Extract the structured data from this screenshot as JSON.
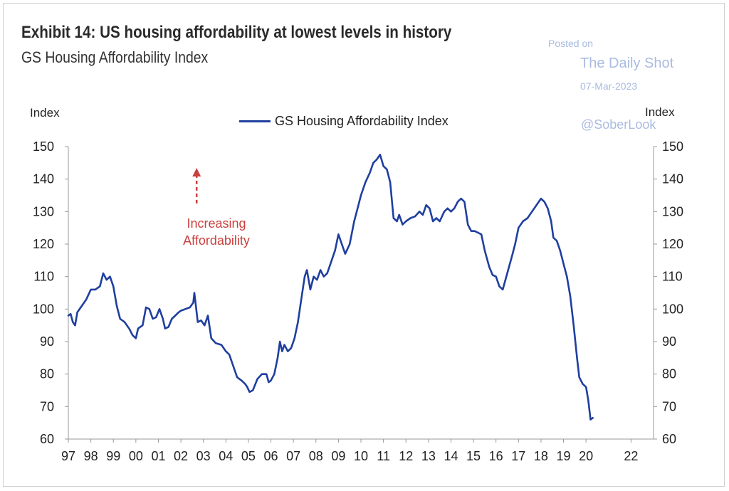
{
  "title": "Exhibit 14: US housing affordability at lowest levels in history",
  "subtitle": "GS Housing Affordability Index",
  "watermark": {
    "posted": "Posted on",
    "site": "The Daily Shot",
    "date": "07-Mar-2023",
    "handle": "@SoberLook"
  },
  "colors": {
    "line": "#1f3f9f",
    "annotation": "#c8413f",
    "watermark": "#a9bbe0"
  },
  "chart_data": {
    "type": "line",
    "title": "Exhibit 14: US housing affordability at lowest levels in history",
    "subtitle": "GS Housing Affordability Index",
    "ylabel_left": "Index",
    "ylabel_right": "Index",
    "ylim": [
      60,
      150
    ],
    "yticks": [
      60,
      70,
      80,
      90,
      100,
      110,
      120,
      130,
      140,
      150
    ],
    "xlim": [
      1997.0,
      2023.0
    ],
    "xticks": [
      {
        "x": 1997,
        "label": "97"
      },
      {
        "x": 1998,
        "label": "98"
      },
      {
        "x": 1999,
        "label": "99"
      },
      {
        "x": 2000,
        "label": "00"
      },
      {
        "x": 2001,
        "label": "01"
      },
      {
        "x": 2002,
        "label": "02"
      },
      {
        "x": 2003,
        "label": "03"
      },
      {
        "x": 2004,
        "label": "04"
      },
      {
        "x": 2005,
        "label": "05"
      },
      {
        "x": 2006,
        "label": "06"
      },
      {
        "x": 2007,
        "label": "07"
      },
      {
        "x": 2008,
        "label": "08"
      },
      {
        "x": 2009,
        "label": "09"
      },
      {
        "x": 2010,
        "label": "10"
      },
      {
        "x": 2011,
        "label": "11"
      },
      {
        "x": 2012,
        "label": "12"
      },
      {
        "x": 2013,
        "label": "13"
      },
      {
        "x": 2014,
        "label": "14"
      },
      {
        "x": 2015,
        "label": "15"
      },
      {
        "x": 2016,
        "label": "16"
      },
      {
        "x": 2017,
        "label": "17"
      },
      {
        "x": 2018,
        "label": "18"
      },
      {
        "x": 2019,
        "label": "19"
      },
      {
        "x": 2020,
        "label": "20"
      },
      {
        "x": 2022,
        "label": "22"
      }
    ],
    "legend": "top-center",
    "grid": false,
    "series": [
      {
        "name": "GS Housing Affordability Index",
        "points": [
          [
            1997.0,
            98
          ],
          [
            1997.1,
            98.5
          ],
          [
            1997.2,
            96
          ],
          [
            1997.3,
            95
          ],
          [
            1997.4,
            99
          ],
          [
            1997.6,
            101
          ],
          [
            1997.8,
            103
          ],
          [
            1998.0,
            106
          ],
          [
            1998.2,
            106
          ],
          [
            1998.4,
            107
          ],
          [
            1998.55,
            111
          ],
          [
            1998.7,
            109
          ],
          [
            1998.85,
            110
          ],
          [
            1999.0,
            107
          ],
          [
            1999.15,
            101
          ],
          [
            1999.3,
            97
          ],
          [
            1999.5,
            96
          ],
          [
            1999.7,
            94
          ],
          [
            1999.85,
            92
          ],
          [
            2000.0,
            91
          ],
          [
            2000.1,
            94
          ],
          [
            2000.3,
            95
          ],
          [
            2000.45,
            100.5
          ],
          [
            2000.6,
            100
          ],
          [
            2000.75,
            97
          ],
          [
            2000.9,
            97.5
          ],
          [
            2001.05,
            100
          ],
          [
            2001.2,
            97
          ],
          [
            2001.3,
            94
          ],
          [
            2001.45,
            94.5
          ],
          [
            2001.6,
            97
          ],
          [
            2001.75,
            98
          ],
          [
            2001.9,
            99
          ],
          [
            2002.0,
            99.5
          ],
          [
            2002.2,
            100
          ],
          [
            2002.4,
            100.5
          ],
          [
            2002.55,
            102
          ],
          [
            2002.6,
            105
          ],
          [
            2002.75,
            96
          ],
          [
            2002.9,
            96.5
          ],
          [
            2003.05,
            95
          ],
          [
            2003.2,
            98
          ],
          [
            2003.35,
            91
          ],
          [
            2003.55,
            89.5
          ],
          [
            2003.8,
            89
          ],
          [
            2004.0,
            87
          ],
          [
            2004.15,
            86
          ],
          [
            2004.3,
            83
          ],
          [
            2004.5,
            79
          ],
          [
            2004.7,
            78
          ],
          [
            2004.85,
            77
          ],
          [
            2004.95,
            76
          ],
          [
            2005.05,
            74.5
          ],
          [
            2005.2,
            75
          ],
          [
            2005.4,
            78.5
          ],
          [
            2005.6,
            80
          ],
          [
            2005.8,
            80
          ],
          [
            2005.9,
            77.5
          ],
          [
            2006.0,
            78
          ],
          [
            2006.15,
            80
          ],
          [
            2006.3,
            85
          ],
          [
            2006.4,
            90
          ],
          [
            2006.5,
            87
          ],
          [
            2006.6,
            89
          ],
          [
            2006.75,
            87
          ],
          [
            2006.9,
            88
          ],
          [
            2007.05,
            91
          ],
          [
            2007.2,
            96
          ],
          [
            2007.35,
            103
          ],
          [
            2007.5,
            110
          ],
          [
            2007.6,
            112
          ],
          [
            2007.75,
            106
          ],
          [
            2007.9,
            110
          ],
          [
            2008.05,
            109
          ],
          [
            2008.2,
            112
          ],
          [
            2008.35,
            110
          ],
          [
            2008.5,
            111
          ],
          [
            2008.7,
            115
          ],
          [
            2008.85,
            118
          ],
          [
            2009.0,
            123
          ],
          [
            2009.15,
            120
          ],
          [
            2009.3,
            117
          ],
          [
            2009.5,
            120
          ],
          [
            2009.7,
            127
          ],
          [
            2009.85,
            131
          ],
          [
            2010.0,
            135
          ],
          [
            2010.2,
            139
          ],
          [
            2010.4,
            142
          ],
          [
            2010.55,
            145
          ],
          [
            2010.7,
            146
          ],
          [
            2010.85,
            147.5
          ],
          [
            2011.0,
            144
          ],
          [
            2011.15,
            143
          ],
          [
            2011.3,
            139
          ],
          [
            2011.45,
            128
          ],
          [
            2011.6,
            127
          ],
          [
            2011.7,
            129
          ],
          [
            2011.85,
            126
          ],
          [
            2012.0,
            127
          ],
          [
            2012.2,
            128
          ],
          [
            2012.4,
            128.5
          ],
          [
            2012.6,
            130
          ],
          [
            2012.75,
            129
          ],
          [
            2012.9,
            132
          ],
          [
            2013.05,
            131
          ],
          [
            2013.2,
            127
          ],
          [
            2013.35,
            128
          ],
          [
            2013.5,
            127
          ],
          [
            2013.7,
            130
          ],
          [
            2013.85,
            131
          ],
          [
            2014.0,
            130
          ],
          [
            2014.15,
            131
          ],
          [
            2014.3,
            133
          ],
          [
            2014.45,
            134
          ],
          [
            2014.6,
            133
          ],
          [
            2014.75,
            126
          ],
          [
            2014.9,
            124
          ],
          [
            2015.05,
            124
          ],
          [
            2015.2,
            123.5
          ],
          [
            2015.35,
            123
          ],
          [
            2015.5,
            118
          ],
          [
            2015.7,
            113
          ],
          [
            2015.85,
            110.5
          ],
          [
            2016.0,
            110
          ],
          [
            2016.15,
            107
          ],
          [
            2016.3,
            106
          ],
          [
            2016.5,
            111
          ],
          [
            2016.7,
            116
          ],
          [
            2016.85,
            120
          ],
          [
            2017.0,
            125
          ],
          [
            2017.2,
            127
          ],
          [
            2017.4,
            128
          ],
          [
            2017.6,
            130
          ],
          [
            2017.8,
            132
          ],
          [
            2018.0,
            134
          ],
          [
            2018.15,
            133
          ],
          [
            2018.3,
            131
          ],
          [
            2018.45,
            127
          ],
          [
            2018.55,
            122
          ],
          [
            2018.7,
            121
          ],
          [
            2018.85,
            118
          ],
          [
            2019.0,
            114
          ],
          [
            2019.15,
            110
          ],
          [
            2019.3,
            104
          ],
          [
            2019.45,
            95
          ],
          [
            2019.6,
            85
          ],
          [
            2019.7,
            79
          ],
          [
            2019.85,
            77
          ],
          [
            2020.0,
            76
          ],
          [
            2020.1,
            72
          ],
          [
            2020.2,
            66
          ],
          [
            2020.3,
            66.5
          ]
        ]
      }
    ],
    "annotation": {
      "text_lines": [
        "Increasing",
        "Affordability"
      ],
      "arrow_x": 2002.7,
      "arrow_from_y": 132.5,
      "arrow_to_y": 143
    }
  }
}
